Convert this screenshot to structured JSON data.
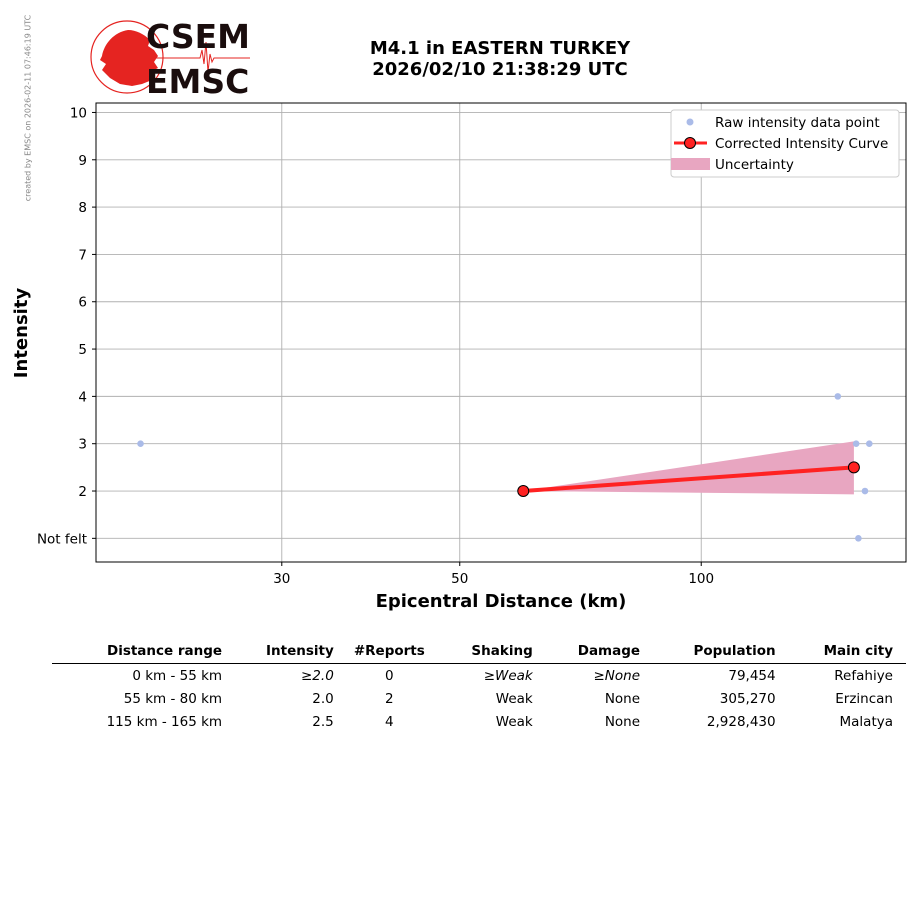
{
  "side_note": "created by EMSC on 2026-02-11 07:46:19 UTC",
  "logo": {
    "top_text": "CSEM",
    "bottom_text": "EMSC",
    "color": "#e52421",
    "text_color": "#1a0d0d"
  },
  "title_line1": "M4.1 in EASTERN TURKEY",
  "title_line2": "2026/02/10 21:38:29 UTC",
  "chart_data": {
    "type": "scatter",
    "xlabel": "Epicentral Distance (km)",
    "ylabel": "Intensity",
    "x_scale": "log",
    "xlim": [
      17.6,
      180
    ],
    "ylim": [
      0.5,
      10.2
    ],
    "x_ticks": [
      30,
      50,
      100
    ],
    "y_ticks": [
      1,
      2,
      3,
      4,
      5,
      6,
      7,
      8,
      9,
      10
    ],
    "y_tick_labels": [
      "Not felt",
      "2",
      "3",
      "4",
      "5",
      "6",
      "7",
      "8",
      "9",
      "10"
    ],
    "grid": true,
    "legend_position": "top-right",
    "raw_points": {
      "name": "Raw intensity data point",
      "color": "#aabbe8",
      "x": [
        20,
        148,
        156,
        162,
        160,
        157
      ],
      "y": [
        3,
        4,
        3,
        3,
        2,
        1
      ]
    },
    "curve": {
      "name": "Corrected Intensity Curve",
      "color": "#ff2222",
      "x": [
        60,
        155
      ],
      "y": [
        2.0,
        2.5
      ]
    },
    "uncertainty": {
      "name": "Uncertainty",
      "color": "#e8a6c1",
      "x": [
        60,
        155
      ],
      "upper": [
        2.0,
        3.05
      ],
      "lower": [
        2.0,
        1.93
      ]
    }
  },
  "table": {
    "headers": [
      "Distance range",
      "Intensity",
      "#Reports",
      "Shaking",
      "Damage",
      "Population",
      "Main city"
    ],
    "rows": [
      {
        "range": "0 km -   55 km",
        "intensity": "≥2.0",
        "reports": "0",
        "shaking": "≥Weak",
        "damage": "≥None",
        "population": "79,454",
        "city": "Refahiye",
        "italic": true
      },
      {
        "range": "55 km -   80 km",
        "intensity": "2.0",
        "reports": "2",
        "shaking": "Weak",
        "damage": "None",
        "population": "305,270",
        "city": "Erzincan",
        "italic": false
      },
      {
        "range": "115 km -  165 km",
        "intensity": "2.5",
        "reports": "4",
        "shaking": "Weak",
        "damage": "None",
        "population": "2,928,430",
        "city": "Malatya",
        "italic": false
      }
    ]
  }
}
